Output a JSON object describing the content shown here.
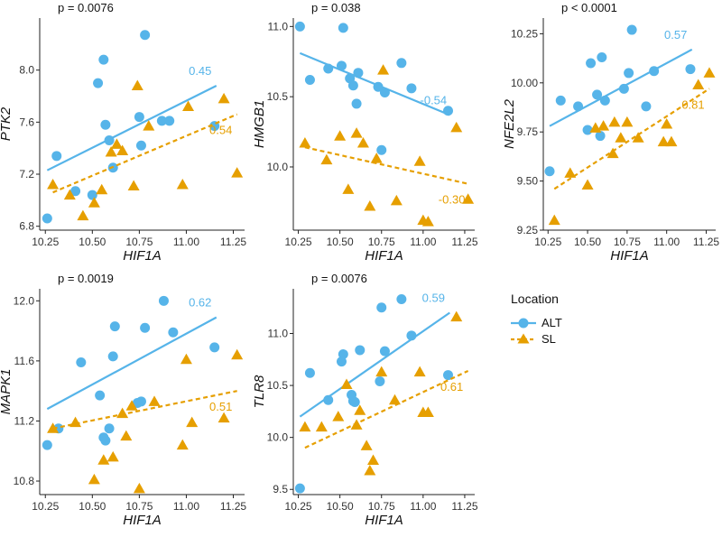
{
  "colors": {
    "ALT": "#56b4e9",
    "SL": "#e69f00",
    "axis": "#222222",
    "text": "#111111"
  },
  "legend": {
    "title": "Location",
    "items": [
      {
        "label": "ALT",
        "shape": "circle",
        "line": "solid",
        "color": "#56b4e9"
      },
      {
        "label": "SL",
        "shape": "triangle",
        "line": "dashed",
        "color": "#e69f00"
      }
    ]
  },
  "chart_data": [
    {
      "type": "scatter",
      "title": "p = 0.0076",
      "xlabel": "HIF1A",
      "ylabel": "PTK2",
      "xlim": [
        10.22,
        11.31
      ],
      "ylim": [
        6.77,
        8.4
      ],
      "xticks": [
        10.25,
        10.5,
        10.75,
        11.0,
        11.25
      ],
      "xtick_labels": [
        "10.25",
        "10.50",
        "10.75",
        "11.00",
        "11.25"
      ],
      "yticks": [
        6.8,
        7.2,
        7.6,
        8.0
      ],
      "ytick_labels": [
        "6.8",
        "7.2",
        "7.6",
        "8.0"
      ],
      "series": [
        {
          "name": "ALT",
          "r": "0.45",
          "x": [
            10.26,
            10.31,
            10.41,
            10.5,
            10.53,
            10.56,
            10.57,
            10.59,
            10.61,
            10.75,
            10.76,
            10.78,
            10.87,
            10.91,
            11.15
          ],
          "y": [
            6.86,
            7.34,
            7.07,
            7.04,
            7.9,
            8.08,
            7.58,
            7.46,
            7.25,
            7.64,
            7.42,
            8.27,
            7.61,
            7.61,
            7.57
          ],
          "fit": [
            10.26,
            7.23,
            11.16,
            7.88
          ]
        },
        {
          "name": "SL",
          "r": "0.54",
          "x": [
            10.29,
            10.38,
            10.45,
            10.51,
            10.55,
            10.6,
            10.63,
            10.66,
            10.72,
            10.74,
            10.8,
            10.98,
            11.01,
            11.2,
            11.27
          ],
          "y": [
            7.12,
            7.04,
            6.88,
            6.98,
            7.08,
            7.37,
            7.43,
            7.38,
            7.11,
            7.88,
            7.57,
            7.12,
            7.72,
            7.78,
            7.21
          ],
          "fit": [
            10.29,
            7.06,
            11.27,
            7.66
          ]
        }
      ]
    },
    {
      "type": "scatter",
      "title": "p = 0.038",
      "xlabel": "HIF1A",
      "ylabel": "HMGB1",
      "xlim": [
        10.22,
        11.31
      ],
      "ylim": [
        9.55,
        11.06
      ],
      "xticks": [
        10.25,
        10.5,
        10.75,
        11.0,
        11.25
      ],
      "xtick_labels": [
        "10.25",
        "10.50",
        "10.75",
        "11.00",
        "11.25"
      ],
      "yticks": [
        10.0,
        10.5,
        11.0
      ],
      "ytick_labels": [
        "10.0",
        "10.5",
        "11.0"
      ],
      "series": [
        {
          "name": "ALT",
          "r": "-0.54",
          "x": [
            10.26,
            10.32,
            10.43,
            10.51,
            10.52,
            10.56,
            10.58,
            10.6,
            10.61,
            10.73,
            10.75,
            10.77,
            10.87,
            10.93,
            11.15
          ],
          "y": [
            11.0,
            10.62,
            10.7,
            10.72,
            10.99,
            10.63,
            10.58,
            10.45,
            10.67,
            10.57,
            10.12,
            10.53,
            10.74,
            10.56,
            10.4
          ],
          "fit": [
            10.26,
            10.81,
            11.16,
            10.37
          ]
        },
        {
          "name": "SL",
          "r": "-0.30",
          "x": [
            10.29,
            10.42,
            10.5,
            10.55,
            10.6,
            10.64,
            10.68,
            10.72,
            10.76,
            10.84,
            10.98,
            11.0,
            11.03,
            11.2,
            11.27
          ],
          "y": [
            10.17,
            10.05,
            10.22,
            9.84,
            10.24,
            10.17,
            9.72,
            10.06,
            10.69,
            9.76,
            10.04,
            9.62,
            9.61,
            10.28,
            9.77
          ],
          "fit": [
            10.29,
            10.14,
            11.27,
            9.88
          ]
        }
      ]
    },
    {
      "type": "scatter",
      "title": "p < 0.0001",
      "xlabel": "HIF1A",
      "ylabel": "NFE2L2",
      "xlim": [
        10.22,
        11.31
      ],
      "ylim": [
        9.25,
        10.33
      ],
      "xticks": [
        10.25,
        10.5,
        10.75,
        11.0,
        11.25
      ],
      "xtick_labels": [
        "10.25",
        "10.50",
        "10.75",
        "11.00",
        "11.25"
      ],
      "yticks": [
        9.25,
        9.5,
        9.75,
        10.0,
        10.25
      ],
      "ytick_labels": [
        "9.25",
        "9.50",
        "9.75",
        "10.00",
        "10.25"
      ],
      "series": [
        {
          "name": "ALT",
          "r": "0.57",
          "x": [
            10.26,
            10.33,
            10.44,
            10.5,
            10.52,
            10.56,
            10.58,
            10.59,
            10.61,
            10.73,
            10.76,
            10.78,
            10.87,
            10.92,
            11.15
          ],
          "y": [
            9.55,
            9.91,
            9.88,
            9.76,
            10.1,
            9.94,
            9.73,
            10.13,
            9.91,
            9.97,
            10.05,
            10.27,
            9.88,
            10.06,
            10.07
          ],
          "fit": [
            10.26,
            9.78,
            11.16,
            10.17
          ]
        },
        {
          "name": "SL",
          "r": "0.81",
          "x": [
            10.29,
            10.39,
            10.5,
            10.55,
            10.6,
            10.66,
            10.67,
            10.71,
            10.75,
            10.82,
            10.98,
            11.0,
            11.03,
            11.2,
            11.27
          ],
          "y": [
            9.3,
            9.54,
            9.48,
            9.77,
            9.78,
            9.64,
            9.8,
            9.72,
            9.8,
            9.72,
            9.7,
            9.79,
            9.7,
            9.99,
            10.05
          ],
          "fit": [
            10.29,
            9.46,
            11.27,
            9.97
          ]
        }
      ]
    },
    {
      "type": "scatter",
      "title": "p = 0.0019",
      "xlabel": "HIF1A",
      "ylabel": "MAPK1",
      "xlim": [
        10.22,
        11.31
      ],
      "ylim": [
        10.71,
        12.08
      ],
      "xticks": [
        10.25,
        10.5,
        10.75,
        11.0,
        11.25
      ],
      "xtick_labels": [
        "10.25",
        "10.50",
        "10.75",
        "11.00",
        "11.25"
      ],
      "yticks": [
        10.8,
        11.2,
        11.6,
        12.0
      ],
      "ytick_labels": [
        "10.8",
        "11.2",
        "11.6",
        "12.0"
      ],
      "series": [
        {
          "name": "ALT",
          "r": "0.62",
          "x": [
            10.26,
            10.32,
            10.44,
            10.54,
            10.57,
            10.59,
            10.61,
            10.62,
            10.74,
            10.76,
            10.78,
            10.88,
            10.93,
            11.15,
            10.56
          ],
          "y": [
            11.04,
            11.15,
            11.59,
            11.37,
            11.07,
            11.15,
            11.63,
            11.83,
            11.32,
            11.33,
            11.82,
            12.0,
            11.79,
            11.69,
            11.09
          ],
          "fit": [
            10.26,
            11.28,
            11.16,
            11.89
          ]
        },
        {
          "name": "SL",
          "r": "0.51",
          "x": [
            10.29,
            10.41,
            10.51,
            10.56,
            10.61,
            10.66,
            10.68,
            10.71,
            10.75,
            10.83,
            10.98,
            11.0,
            11.03,
            11.2,
            11.27
          ],
          "y": [
            11.15,
            11.19,
            10.81,
            10.94,
            10.96,
            11.25,
            11.1,
            11.3,
            10.75,
            11.33,
            11.04,
            11.61,
            11.19,
            11.22,
            11.64
          ],
          "fit": [
            10.29,
            11.15,
            11.27,
            11.4
          ]
        }
      ]
    },
    {
      "type": "scatter",
      "title": "p = 0.0076",
      "xlabel": "HIF1A",
      "ylabel": "TLR8",
      "xlim": [
        10.22,
        11.31
      ],
      "ylim": [
        9.45,
        11.43
      ],
      "xticks": [
        10.25,
        10.5,
        10.75,
        11.0,
        11.25
      ],
      "xtick_labels": [
        "10.25",
        "10.50",
        "10.75",
        "11.00",
        "11.25"
      ],
      "yticks": [
        9.5,
        10.0,
        10.5,
        11.0
      ],
      "ytick_labels": [
        "9.5",
        "10.0",
        "10.5",
        "11.0"
      ],
      "series": [
        {
          "name": "ALT",
          "r": "0.59",
          "x": [
            10.26,
            10.32,
            10.43,
            10.51,
            10.52,
            10.57,
            10.58,
            10.59,
            10.62,
            10.74,
            10.75,
            10.77,
            10.87,
            10.93,
            11.15
          ],
          "y": [
            9.51,
            10.62,
            10.36,
            10.73,
            10.8,
            10.41,
            10.35,
            10.34,
            10.84,
            10.54,
            11.25,
            10.83,
            11.33,
            10.98,
            10.6
          ],
          "fit": [
            10.26,
            10.2,
            11.16,
            11.2
          ]
        },
        {
          "name": "SL",
          "r": "0.61",
          "x": [
            10.29,
            10.39,
            10.49,
            10.54,
            10.6,
            10.62,
            10.66,
            10.68,
            10.7,
            10.75,
            10.83,
            10.98,
            11.0,
            11.03,
            11.2
          ],
          "y": [
            10.1,
            10.1,
            10.2,
            10.51,
            10.12,
            10.26,
            9.92,
            9.68,
            9.78,
            10.63,
            10.36,
            10.63,
            10.24,
            10.24,
            11.16
          ],
          "fit": [
            10.29,
            9.9,
            11.27,
            10.64
          ]
        }
      ]
    }
  ]
}
